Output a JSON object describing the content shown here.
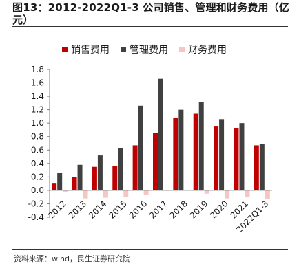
{
  "header": {
    "title": "图13：2012-2022Q1-3 公司销售、管理和财务费用（亿元）"
  },
  "footer": {
    "source": "资料来源：wind，民生证券研究院"
  },
  "chart_data": {
    "type": "bar",
    "categories": [
      "2012",
      "2013",
      "2014",
      "2015",
      "2016",
      "2017",
      "2018",
      "2019",
      "2020",
      "2021",
      "2022Q1-3"
    ],
    "series": [
      {
        "name": "销售费用",
        "color": "#C00000",
        "values": [
          0.11,
          0.2,
          0.35,
          0.36,
          0.67,
          0.85,
          1.08,
          1.14,
          0.95,
          0.93,
          0.67
        ]
      },
      {
        "name": "管理费用",
        "color": "#404040",
        "values": [
          0.26,
          0.38,
          0.52,
          0.63,
          1.26,
          1.66,
          1.2,
          1.31,
          1.06,
          1.0,
          0.69
        ]
      },
      {
        "name": "财务费用",
        "color": "#F4C7C3",
        "values": [
          -0.02,
          -0.12,
          -0.11,
          -0.1,
          -0.07,
          0.0,
          0.01,
          -0.05,
          -0.12,
          -0.1,
          -0.13
        ]
      }
    ],
    "ylim": [
      -0.4,
      1.8
    ],
    "yticks": [
      "1.8",
      "1.6",
      "1.4",
      "1.2",
      "1.0",
      "0.8",
      "0.6",
      "0.4",
      "0.2",
      "0.0",
      "-0.2",
      "-0.4"
    ],
    "legend_position": "top",
    "grid": false
  }
}
